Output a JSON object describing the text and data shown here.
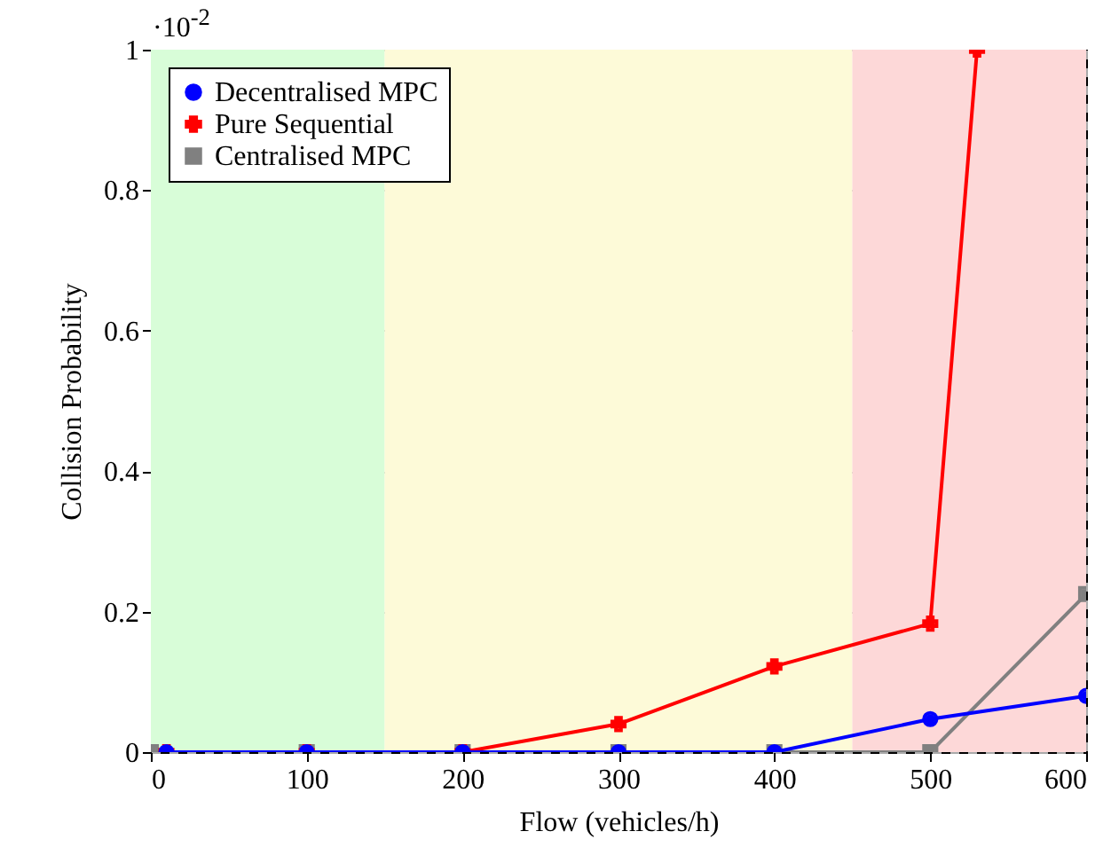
{
  "chart_data": {
    "type": "line",
    "xlabel": "Flow (vehicles/h)",
    "ylabel": "Collision Probability",
    "annotations": [
      "·10$^{-2}$"
    ],
    "x": [
      10,
      100,
      200,
      300,
      400,
      500,
      600
    ],
    "series": [
      {
        "name": "Decentralised MPC",
        "color": "#0000ff",
        "marker": "circle",
        "values": [
          0,
          0,
          0,
          0,
          0,
          0.047,
          0.08
        ]
      },
      {
        "name": "Pure Sequential",
        "color": "#ff0000",
        "marker": "cross",
        "x": [
          10,
          100,
          200,
          300,
          400,
          500,
          530
        ],
        "values": [
          0,
          0,
          0,
          0.04,
          0.122,
          0.183,
          1
        ]
      },
      {
        "name": "Centralised MPC",
        "color": "#808080",
        "marker": "square",
        "x": [
          0,
          100,
          200,
          300,
          400,
          500,
          600
        ],
        "values": [
          0,
          0,
          0,
          0,
          0,
          0,
          0.225
        ]
      }
    ],
    "xlim": [
      0,
      600
    ],
    "xticks": [
      0,
      100,
      200,
      300,
      400,
      500,
      600
    ],
    "ylim": [
      0,
      1
    ],
    "yticks": [
      0,
      0.2,
      0.4,
      0.6,
      0.8,
      1
    ],
    "bands": [
      {
        "axis": "x",
        "from": 0,
        "to": 150,
        "color": "#d8fdd8"
      },
      {
        "axis": "x",
        "from": 150,
        "to": 450,
        "color": "#fdfad8"
      },
      {
        "axis": "x",
        "from": 450,
        "to": 600,
        "color": "#fdd8d8"
      }
    ],
    "grid": true,
    "legend": "top left",
    "line_style": "solid"
  }
}
